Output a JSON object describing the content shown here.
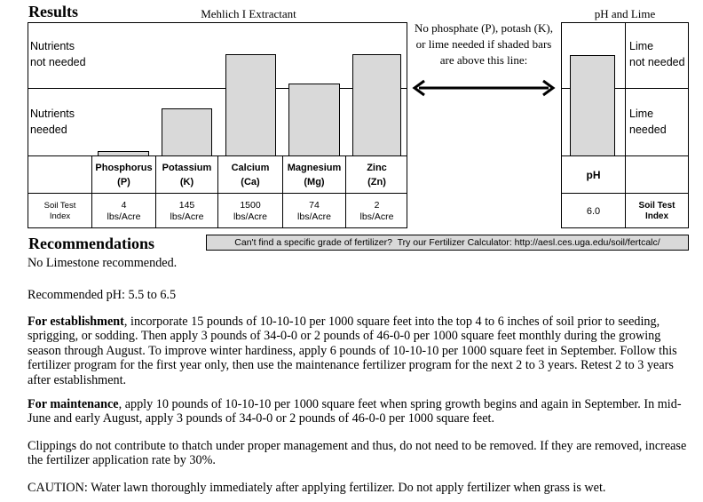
{
  "results": {
    "title": "Results",
    "extractant": "Mehlich I Extractant",
    "ph_lime_title": "pH and Lime",
    "nutrients_not_needed": "Nutrients\nnot needed",
    "nutrients_needed": "Nutrients\nneeded",
    "middle_note": "No phosphate (P), potash (K), or lime needed if shaded bars are above this line:",
    "lime_not_needed": "Lime\nnot needed",
    "lime_needed": "Lime\nneeded",
    "row_label": "Soil Test\nIndex",
    "nutrients": [
      {
        "name": "Phosphorus",
        "symbol": "(P)",
        "value": "4",
        "unit": "lbs/Acre",
        "level_pct": 7
      },
      {
        "name": "Potassium",
        "symbol": "(K)",
        "value": "145",
        "unit": "lbs/Acre",
        "level_pct": 70
      },
      {
        "name": "Calcium",
        "symbol": "(Ca)",
        "value": "1500",
        "unit": "lbs/Acre",
        "level_pct": 150
      },
      {
        "name": "Magnesium",
        "symbol": "(Mg)",
        "value": "74",
        "unit": "lbs/Acre",
        "level_pct": 106
      },
      {
        "name": "Zinc",
        "symbol": "(Zn)",
        "value": "2",
        "unit": "lbs/Acre",
        "level_pct": 150
      }
    ],
    "ph": {
      "label": "pH",
      "value": "6.0",
      "index_label": "Soil Test\nIndex",
      "level_pct": 149
    }
  },
  "recommendations": {
    "title": "Recommendations",
    "calculator_note": "Can't find a specific grade of fertilizer?  Try our Fertilizer Calculator: http://aesl.ces.uga.edu/soil/fertcalc/",
    "limestone": "No Limestone recommended.",
    "recommended_ph": "Recommended pH: 5.5 to 6.5",
    "establishment_lead": "For establishment",
    "establishment_text": ", incorporate 15 pounds of 10-10-10 per 1000 square feet into the top 4 to 6 inches of soil prior to seeding, sprigging, or sodding. Then apply 3 pounds of 34-0-0 or 2 pounds of 46-0-0 per 1000 square feet monthly during the growing season through August. To improve winter hardiness, apply 6 pounds of 10-10-10 per 1000 square feet in September. Follow this fertilizer program for the first year only, then use the maintenance fertilizer program for the next 2 to 3 years. Retest 2 to 3 years after establishment.",
    "maintenance_lead": "For maintenance",
    "maintenance_text": ", apply 10 pounds of 10-10-10 per 1000 square feet when spring growth begins and again in September. In mid-June and early August, apply 3 pounds of 34-0-0 or 2 pounds of 46-0-0 per 1000 square feet.",
    "clippings": "Clippings do not contribute to thatch under proper management and thus, do not need to be removed. If they are removed, increase the fertilizer application rate by 30%.",
    "caution": "CAUTION: Water lawn thoroughly immediately after applying fertilizer. Do not apply fertilizer when grass is wet."
  }
}
